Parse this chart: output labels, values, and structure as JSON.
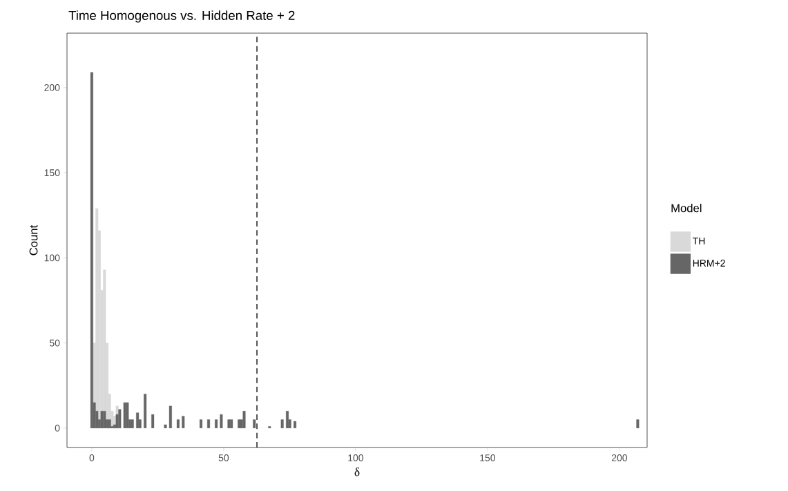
{
  "chart_data": {
    "type": "histogram",
    "title": "Time Homogenous vs. Hidden Rate + 2",
    "xlabel": "δ",
    "ylabel": "Count",
    "legend_title": "Model",
    "legend": "right",
    "grid": false,
    "xlim": [
      -9.4,
      210.5
    ],
    "ylim": [
      -11.4,
      232
    ],
    "xticks": [
      0,
      50,
      100,
      150,
      200
    ],
    "yticks": [
      0,
      50,
      100,
      150,
      200
    ],
    "bins": [
      -0.481,
      0.481,
      1.444,
      2.406,
      3.369,
      4.331,
      5.294,
      6.256,
      7.219,
      8.181,
      9.144,
      10.106,
      11.069,
      12.031,
      12.994,
      13.956,
      14.919,
      15.881,
      16.844,
      17.806,
      18.769,
      19.731,
      20.694,
      22.619,
      23.581,
      27.431,
      28.394,
      29.356,
      30.319,
      32.244,
      33.206,
      34.169,
      35.131,
      40.906,
      41.869,
      43.794,
      44.756,
      46.681,
      47.644,
      48.606,
      49.569,
      51.494,
      52.456,
      53.419,
      55.344,
      56.306,
      57.269,
      58.231,
      61.119,
      62.081,
      66.894,
      67.856,
      71.706,
      72.669,
      73.631,
      74.594,
      75.556,
      76.519,
      77.481,
      206.456,
      207.419
    ],
    "series": [
      {
        "name": "TH",
        "color": "#d9d9d9",
        "values": [
          null,
          50,
          129,
          116,
          81,
          93,
          50,
          20,
          10,
          7,
          13,
          0,
          0,
          0,
          0,
          0,
          0,
          0,
          0,
          0,
          0,
          0,
          0,
          0,
          0,
          0,
          0,
          0,
          0,
          0,
          0,
          0,
          0,
          0,
          0,
          0,
          0,
          0,
          0,
          0,
          0,
          0,
          0,
          0,
          0,
          0,
          0,
          0,
          0,
          0,
          0,
          0,
          0,
          0,
          0,
          0,
          0,
          0,
          0,
          0
        ]
      },
      {
        "name": "HRM+2",
        "color": "#666666",
        "values": [
          209,
          15,
          10,
          5,
          10,
          10,
          5,
          5,
          1,
          2,
          8,
          11,
          0,
          15,
          15,
          5,
          5,
          0,
          9,
          5,
          0,
          20,
          0,
          8,
          0,
          2,
          0,
          13,
          0,
          5,
          0,
          7,
          0,
          5,
          0,
          5,
          0,
          5,
          0,
          8,
          0,
          5,
          5,
          0,
          5,
          5,
          10,
          0,
          5,
          0,
          1,
          0,
          5,
          0,
          10,
          5,
          0,
          4,
          0,
          5
        ]
      }
    ],
    "ref_lines": [
      {
        "axis": "x",
        "value": 62.6,
        "color": "#000000",
        "line_style": "dashed"
      }
    ]
  }
}
